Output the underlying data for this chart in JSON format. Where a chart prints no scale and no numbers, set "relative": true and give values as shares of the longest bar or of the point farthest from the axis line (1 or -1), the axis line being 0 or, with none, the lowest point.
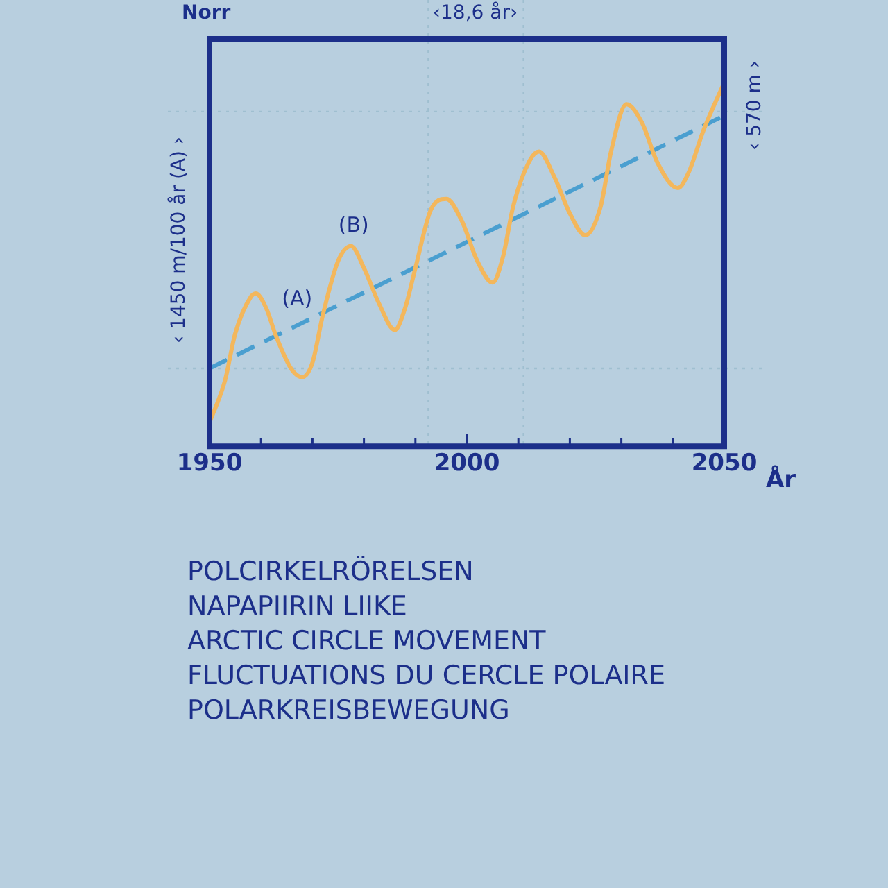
{
  "chart_data": {
    "type": "line",
    "title": "POLCIRKELRÖRELSEN\nNAPAPIIRIN LIIKE\nARCTIC CIRCLE MOVEMENT\nFLUCTUATIONS DU CERCLE POLAIRE\nPOLARKREISBEWEGUNG",
    "xlabel": "År",
    "ylabel": "‹ 1450 m/100 år (A) ›",
    "y2label": "‹ 570 m ›",
    "relative": true,
    "x": [
      1950,
      1953,
      1955,
      1958,
      1959,
      1961,
      1963,
      1966,
      1968,
      1970,
      1972,
      1975,
      1977.5,
      1980,
      1983,
      1986,
      1988,
      1990,
      1993,
      1996,
      1999,
      2002,
      2005,
      2007,
      2009,
      2012,
      2014,
      2017,
      2020,
      2023,
      2026,
      2028,
      2031,
      2034,
      2037,
      2041,
      2043,
      2046,
      2050
    ],
    "xlim": [
      1950,
      2050
    ],
    "xticks": [
      1950,
      {
        "value": 1960,
        "label": null
      },
      {
        "value": 1970,
        "label": null
      },
      {
        "value": 1980,
        "label": null
      },
      {
        "value": 1990,
        "label": null
      },
      2000,
      {
        "value": 2010,
        "label": null
      },
      {
        "value": 2020,
        "label": null
      },
      {
        "value": 2030,
        "label": null
      },
      {
        "value": 2040,
        "label": null
      },
      2050
    ],
    "series": [
      {
        "color": "#f3b75c",
        "values": [
          0.065,
          0.18,
          0.31,
          0.41,
          0.42,
          0.38,
          0.3,
          0.21,
          0.19,
          0.23,
          0.36,
          0.51,
          0.55,
          0.49,
          0.39,
          0.32,
          0.38,
          0.49,
          0.65,
          0.68,
          0.62,
          0.51,
          0.45,
          0.52,
          0.66,
          0.78,
          0.81,
          0.74,
          0.64,
          0.58,
          0.66,
          0.81,
          0.94,
          0.89,
          0.78,
          0.71,
          0.75,
          0.87,
          1.0
        ]
      },
      {
        "color": "#4a9fd0",
        "x": [
          1950,
          2050
        ],
        "values": [
          0.214,
          0.909
        ],
        "line_style": "dashed"
      }
    ],
    "ref_lines": [
      {
        "axis": "x",
        "value": 1992.5,
        "color": "#9fbfd0",
        "line_style": "dotted"
      },
      {
        "axis": "x",
        "value": 2011,
        "color": "#9fbfd0",
        "line_style": "dotted"
      },
      {
        "axis": "y",
        "value": 0.214,
        "color": "#9fbfd0",
        "line_style": "dotted"
      },
      {
        "axis": "y",
        "value": 0.92,
        "color": "#9fbfd0",
        "line_style": "dotted"
      }
    ],
    "annotations": [
      "Norr",
      "‹18,6 år›",
      "(A)",
      "(B)"
    ],
    "grid": false,
    "legend": false,
    "marker": "none",
    "line_style": "solid"
  }
}
